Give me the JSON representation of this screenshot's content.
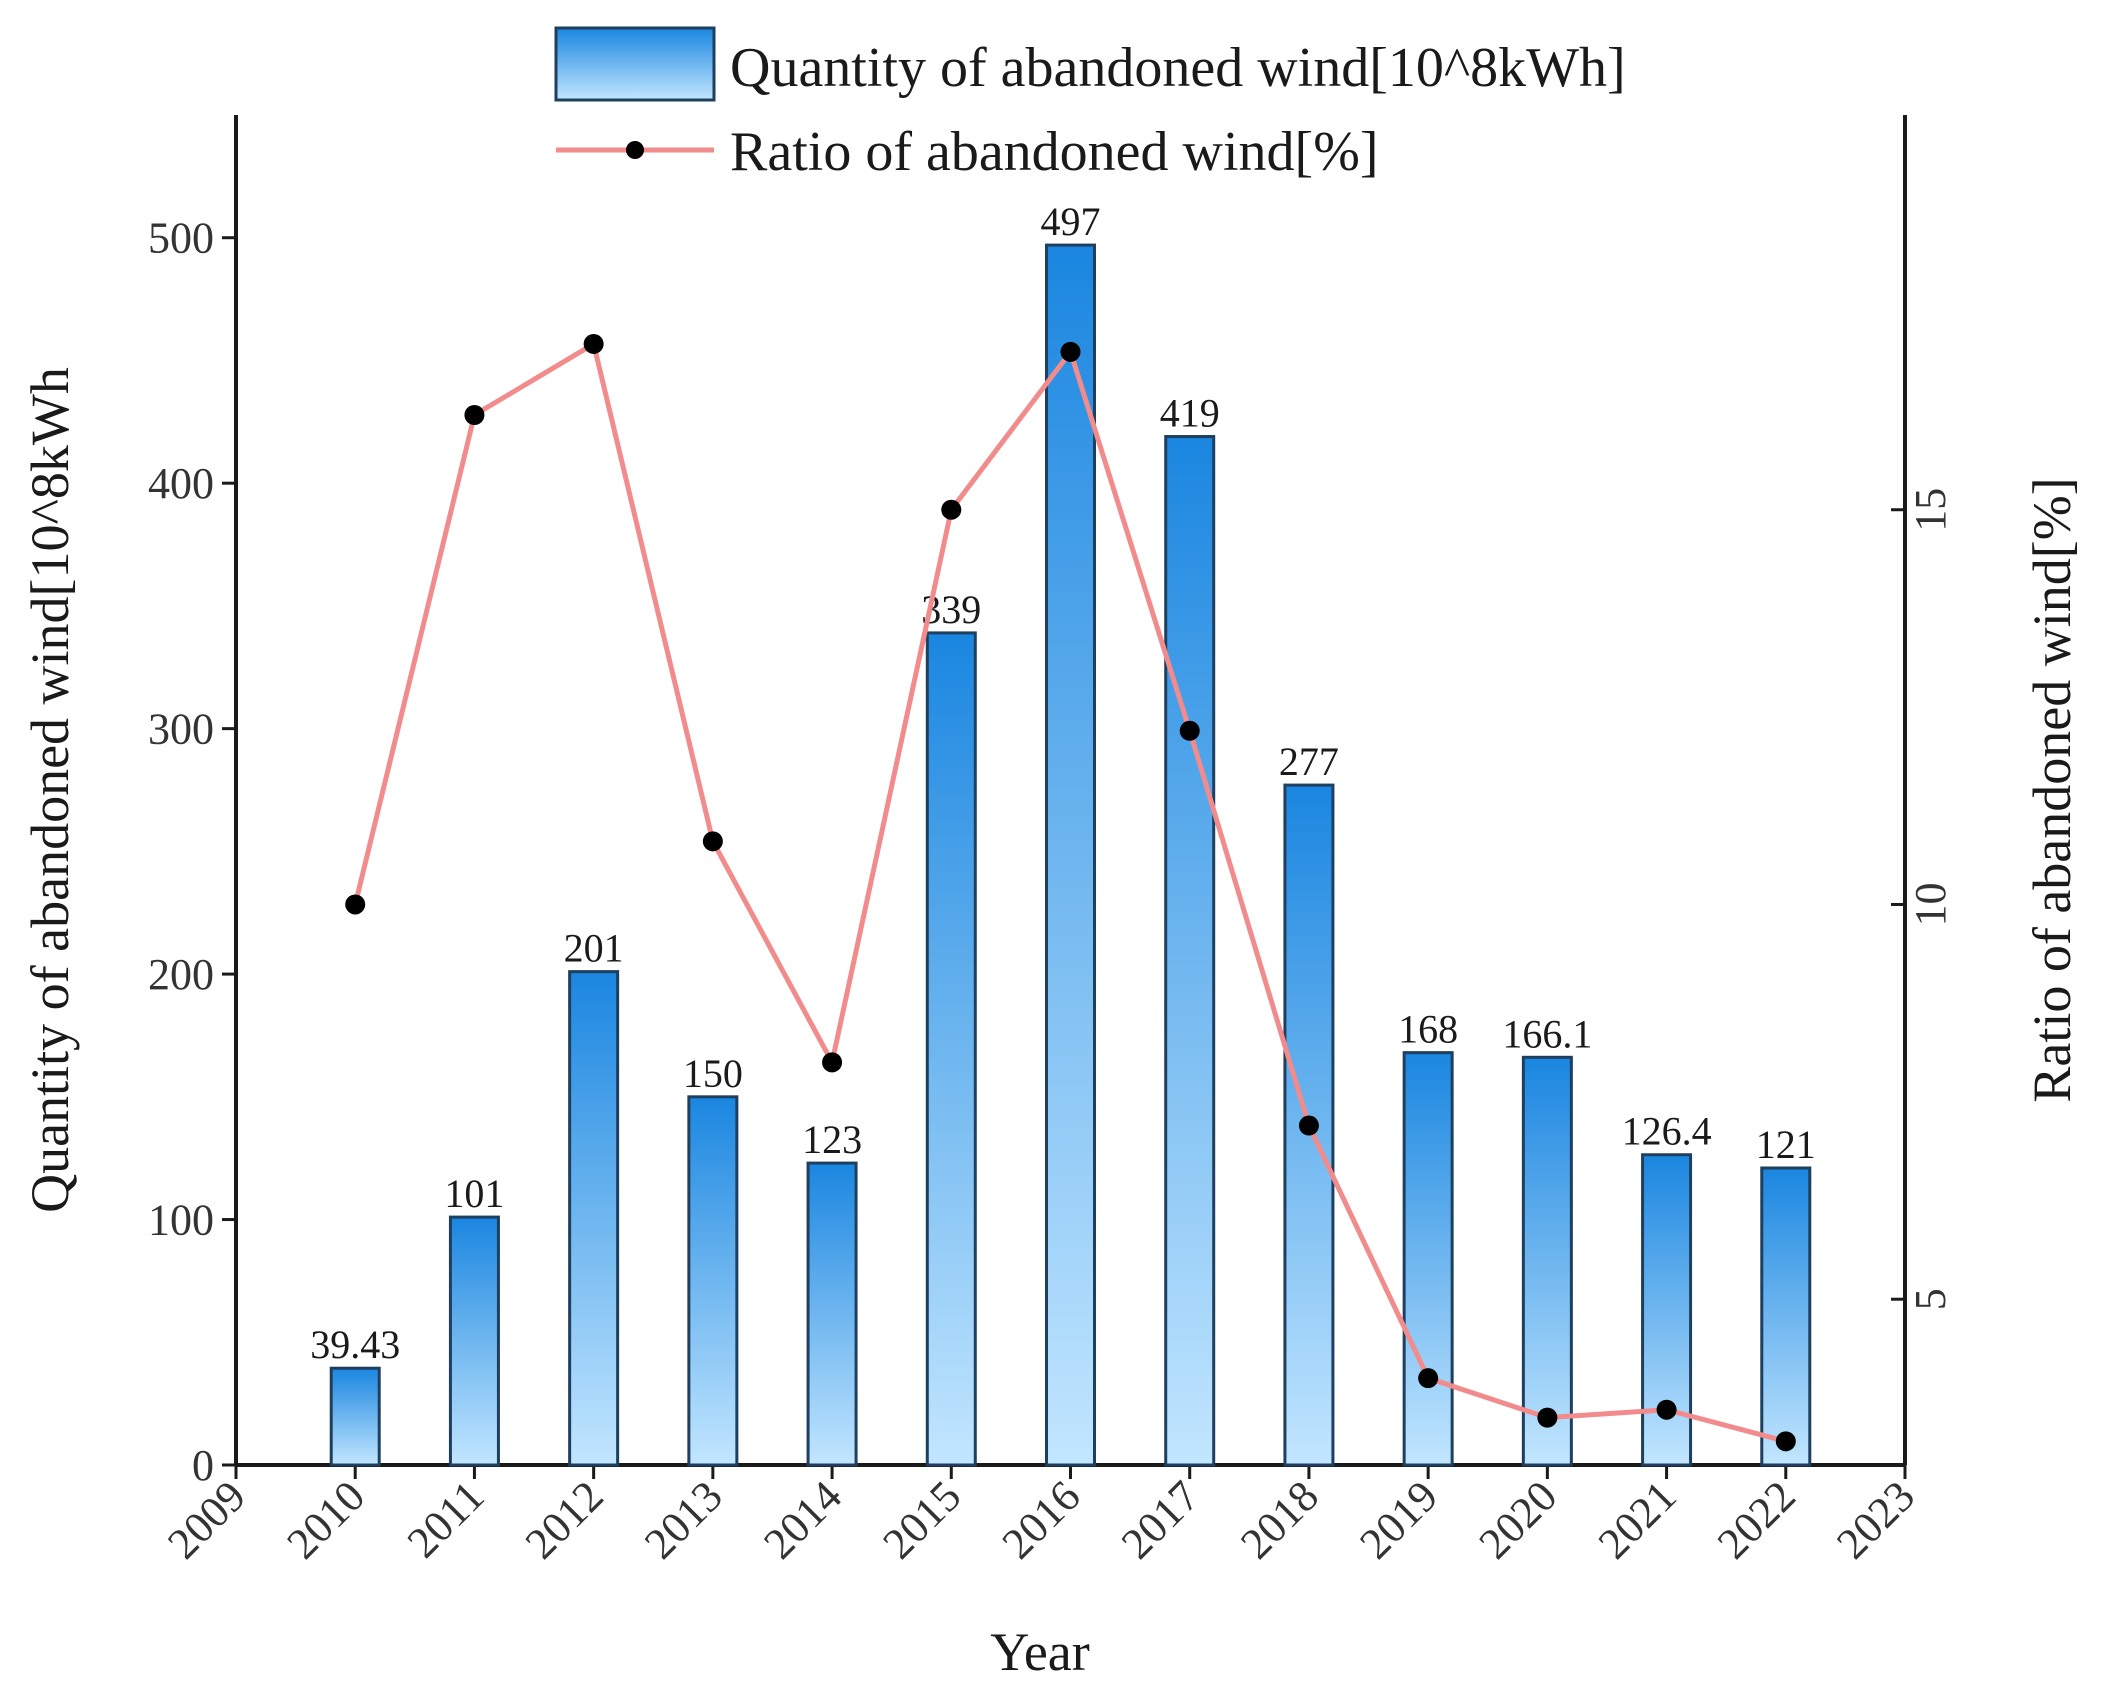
{
  "chart_data": {
    "type": "bar",
    "title": "",
    "xlabel": "Year",
    "ylabel": "Quantity of abandoned wind[10^8kWh",
    "y2label": "Ratio of  abandoned wind[%]",
    "xlim": [
      2009,
      2023
    ],
    "x_ticks": [
      "2009",
      "2010",
      "2011",
      "2012",
      "2013",
      "2014",
      "2015",
      "2016",
      "2017",
      "2018",
      "2019",
      "2020",
      "2021",
      "2022",
      "2023"
    ],
    "ylim": [
      0,
      550
    ],
    "y_ticks": [
      "0",
      "100",
      "200",
      "300",
      "400",
      "500"
    ],
    "y2lim": [
      2.9,
      20
    ],
    "y2_ticks": [
      "5",
      "10",
      "15"
    ],
    "legend_position": "top",
    "series": [
      {
        "name": "Quantity of abandoned wind[10^8kWh]",
        "type": "bar",
        "axis": "left",
        "color_top": "#1a86e0",
        "color_bottom": "#c2e6ff",
        "x": [
          2010,
          2011,
          2012,
          2013,
          2014,
          2015,
          2016,
          2017,
          2018,
          2019,
          2020,
          2021,
          2022
        ],
        "values": [
          39.43,
          101,
          201,
          150,
          123,
          339,
          497,
          419,
          277,
          168,
          166.1,
          126.4,
          121
        ],
        "labels": [
          "39.43",
          "101",
          "201",
          "150",
          "123",
          "339",
          "497",
          "419",
          "277",
          "168",
          "166.1",
          "126.4",
          "121"
        ]
      },
      {
        "name": "Ratio of  abandoned wind[%]",
        "type": "line",
        "axis": "right",
        "color": "#f28b8b",
        "marker_color": "#000000",
        "x": [
          2010,
          2011,
          2012,
          2013,
          2014,
          2015,
          2016,
          2017,
          2018,
          2019,
          2020,
          2021,
          2022
        ],
        "values": [
          10.0,
          16.2,
          17.1,
          10.8,
          8.0,
          15.0,
          17.0,
          12.2,
          7.2,
          4.0,
          3.5,
          3.6,
          3.2
        ]
      }
    ]
  }
}
